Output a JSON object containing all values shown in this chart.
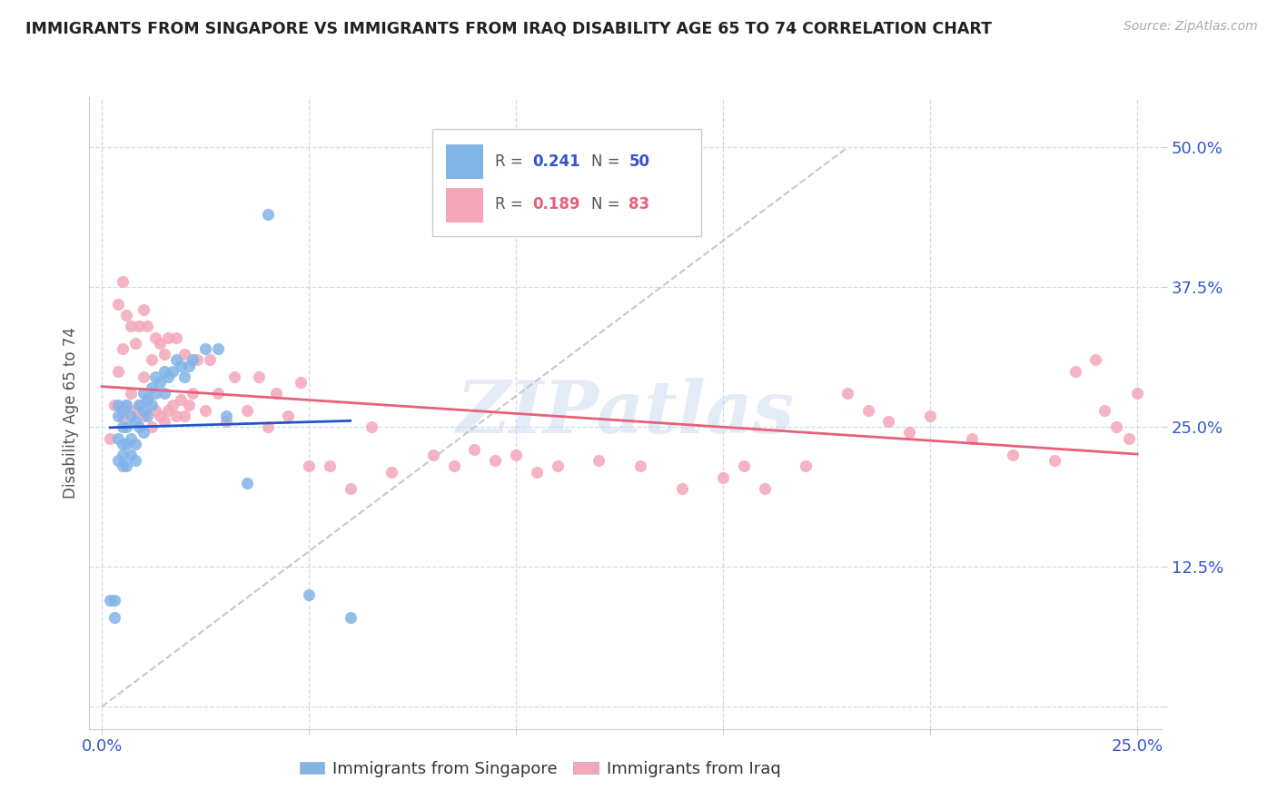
{
  "title": "IMMIGRANTS FROM SINGAPORE VS IMMIGRANTS FROM IRAQ DISABILITY AGE 65 TO 74 CORRELATION CHART",
  "source": "Source: ZipAtlas.com",
  "ylabel": "Disability Age 65 to 74",
  "color_singapore": "#82b4e8",
  "color_iraq": "#f4a7b9",
  "color_singapore_line": "#2255cc",
  "color_iraq_line": "#e8607a",
  "color_dashed_line": "#bbbbbb",
  "color_grid": "#c8d8ec",
  "color_axis_text": "#3355cc",
  "watermark_color": "#c8d8f0",
  "sg_x": [
    0.002,
    0.003,
    0.003,
    0.004,
    0.004,
    0.004,
    0.004,
    0.005,
    0.005,
    0.005,
    0.005,
    0.005,
    0.006,
    0.006,
    0.006,
    0.006,
    0.007,
    0.007,
    0.007,
    0.008,
    0.008,
    0.008,
    0.009,
    0.009,
    0.01,
    0.01,
    0.01,
    0.011,
    0.011,
    0.012,
    0.012,
    0.013,
    0.013,
    0.014,
    0.015,
    0.015,
    0.016,
    0.017,
    0.018,
    0.019,
    0.02,
    0.021,
    0.022,
    0.025,
    0.028,
    0.03,
    0.035,
    0.04,
    0.05,
    0.06
  ],
  "sg_y": [
    0.095,
    0.08,
    0.095,
    0.22,
    0.24,
    0.26,
    0.27,
    0.215,
    0.225,
    0.235,
    0.25,
    0.265,
    0.215,
    0.235,
    0.25,
    0.27,
    0.225,
    0.24,
    0.26,
    0.22,
    0.235,
    0.255,
    0.25,
    0.27,
    0.245,
    0.265,
    0.28,
    0.26,
    0.275,
    0.27,
    0.285,
    0.28,
    0.295,
    0.29,
    0.28,
    0.3,
    0.295,
    0.3,
    0.31,
    0.305,
    0.295,
    0.305,
    0.31,
    0.32,
    0.32,
    0.26,
    0.2,
    0.44,
    0.1,
    0.08
  ],
  "iq_x": [
    0.002,
    0.003,
    0.004,
    0.004,
    0.005,
    0.005,
    0.005,
    0.006,
    0.006,
    0.007,
    0.007,
    0.008,
    0.008,
    0.009,
    0.009,
    0.01,
    0.01,
    0.01,
    0.011,
    0.011,
    0.012,
    0.012,
    0.013,
    0.013,
    0.014,
    0.014,
    0.015,
    0.015,
    0.016,
    0.016,
    0.017,
    0.018,
    0.018,
    0.019,
    0.02,
    0.02,
    0.021,
    0.022,
    0.023,
    0.025,
    0.026,
    0.028,
    0.03,
    0.032,
    0.035,
    0.038,
    0.04,
    0.042,
    0.045,
    0.048,
    0.05,
    0.055,
    0.06,
    0.065,
    0.07,
    0.08,
    0.085,
    0.09,
    0.095,
    0.1,
    0.105,
    0.11,
    0.12,
    0.13,
    0.14,
    0.15,
    0.155,
    0.16,
    0.17,
    0.18,
    0.185,
    0.19,
    0.195,
    0.2,
    0.21,
    0.22,
    0.23,
    0.235,
    0.24,
    0.242,
    0.245,
    0.248,
    0.25
  ],
  "iq_y": [
    0.24,
    0.27,
    0.3,
    0.36,
    0.26,
    0.32,
    0.38,
    0.27,
    0.35,
    0.28,
    0.34,
    0.265,
    0.325,
    0.27,
    0.34,
    0.26,
    0.295,
    0.355,
    0.275,
    0.34,
    0.25,
    0.31,
    0.265,
    0.33,
    0.26,
    0.325,
    0.255,
    0.315,
    0.265,
    0.33,
    0.27,
    0.26,
    0.33,
    0.275,
    0.26,
    0.315,
    0.27,
    0.28,
    0.31,
    0.265,
    0.31,
    0.28,
    0.255,
    0.295,
    0.265,
    0.295,
    0.25,
    0.28,
    0.26,
    0.29,
    0.215,
    0.215,
    0.195,
    0.25,
    0.21,
    0.225,
    0.215,
    0.23,
    0.22,
    0.225,
    0.21,
    0.215,
    0.22,
    0.215,
    0.195,
    0.205,
    0.215,
    0.195,
    0.215,
    0.28,
    0.265,
    0.255,
    0.245,
    0.26,
    0.24,
    0.225,
    0.22,
    0.3,
    0.31,
    0.265,
    0.25,
    0.24,
    0.28
  ],
  "xlim": [
    0.0,
    0.25
  ],
  "ylim": [
    0.0,
    0.52
  ],
  "xticks": [
    0.0,
    0.05,
    0.1,
    0.15,
    0.2,
    0.25
  ],
  "yticks": [
    0.0,
    0.125,
    0.25,
    0.375,
    0.5
  ],
  "ytick_labels": [
    "",
    "12.5%",
    "25.0%",
    "37.5%",
    "50.0%"
  ]
}
